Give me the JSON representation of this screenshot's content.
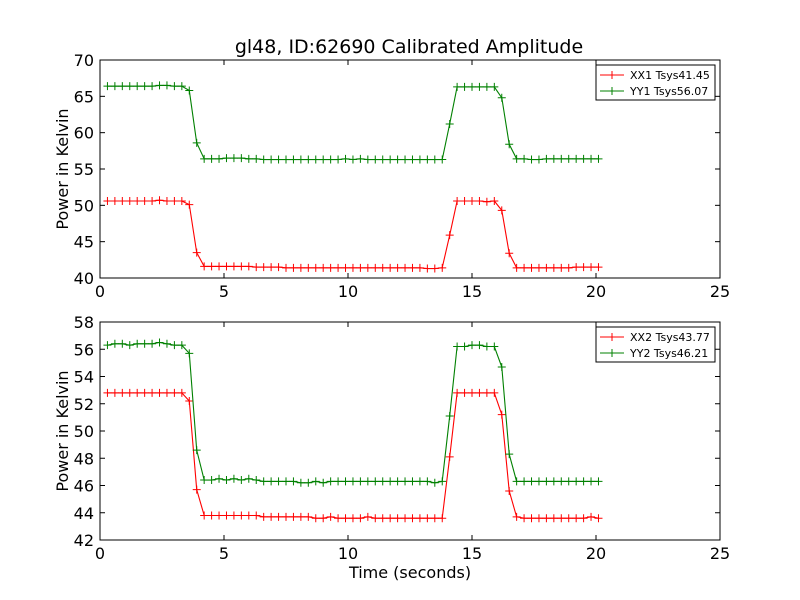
{
  "figure_title": "gl48, ID:62690 Calibrated Amplitude",
  "colors": {
    "series_a": "#ff0000",
    "series_b": "#008000"
  },
  "chart_data": [
    {
      "type": "line",
      "xlabel": "",
      "ylabel": "Power in Kelvin",
      "xlim": [
        0,
        25
      ],
      "ylim": [
        40,
        70
      ],
      "xticks": [
        "0",
        "5",
        "10",
        "15",
        "20",
        "25"
      ],
      "yticks": [
        "40",
        "45",
        "50",
        "55",
        "60",
        "65",
        "70"
      ],
      "grid": false,
      "legend": "top-right",
      "x": [
        0.3,
        0.6,
        0.9,
        1.2,
        1.5,
        1.8,
        2.1,
        2.4,
        2.7,
        3.0,
        3.3,
        3.6,
        3.9,
        4.2,
        4.5,
        4.8,
        5.1,
        5.4,
        5.7,
        6.0,
        6.3,
        6.6,
        6.9,
        7.2,
        7.5,
        7.8,
        8.1,
        8.4,
        8.7,
        9.0,
        9.3,
        9.6,
        9.9,
        10.2,
        10.5,
        10.8,
        11.1,
        11.4,
        11.7,
        12.0,
        12.3,
        12.6,
        12.9,
        13.2,
        13.5,
        13.8,
        14.1,
        14.4,
        14.7,
        15.0,
        15.3,
        15.6,
        15.9,
        16.2,
        16.5,
        16.8,
        17.1,
        17.4,
        17.7,
        18.0,
        18.3,
        18.6,
        18.9,
        19.2,
        19.5,
        19.8,
        20.1
      ],
      "series": [
        {
          "name": "XX1 Tsys41.45",
          "values": [
            50.6,
            50.6,
            50.6,
            50.6,
            50.6,
            50.6,
            50.6,
            50.7,
            50.6,
            50.6,
            50.6,
            50.1,
            43.5,
            41.6,
            41.6,
            41.6,
            41.6,
            41.6,
            41.6,
            41.6,
            41.5,
            41.5,
            41.5,
            41.5,
            41.4,
            41.4,
            41.4,
            41.4,
            41.4,
            41.4,
            41.4,
            41.4,
            41.4,
            41.4,
            41.4,
            41.4,
            41.4,
            41.4,
            41.4,
            41.4,
            41.4,
            41.4,
            41.4,
            41.3,
            41.3,
            41.4,
            45.9,
            50.6,
            50.6,
            50.6,
            50.6,
            50.5,
            50.6,
            49.3,
            43.4,
            41.4,
            41.4,
            41.4,
            41.4,
            41.4,
            41.4,
            41.4,
            41.4,
            41.5,
            41.5,
            41.5,
            41.5
          ]
        },
        {
          "name": "YY1 Tsys56.07",
          "values": [
            66.4,
            66.4,
            66.4,
            66.4,
            66.4,
            66.4,
            66.4,
            66.5,
            66.5,
            66.4,
            66.4,
            65.8,
            58.6,
            56.4,
            56.4,
            56.4,
            56.5,
            56.5,
            56.5,
            56.4,
            56.4,
            56.3,
            56.3,
            56.3,
            56.3,
            56.3,
            56.3,
            56.3,
            56.3,
            56.3,
            56.3,
            56.3,
            56.4,
            56.3,
            56.4,
            56.3,
            56.3,
            56.3,
            56.3,
            56.3,
            56.3,
            56.3,
            56.3,
            56.3,
            56.3,
            56.3,
            61.2,
            66.3,
            66.3,
            66.3,
            66.3,
            66.3,
            66.3,
            64.8,
            58.4,
            56.4,
            56.4,
            56.3,
            56.3,
            56.4,
            56.4,
            56.4,
            56.4,
            56.4,
            56.4,
            56.4,
            56.4
          ]
        }
      ]
    },
    {
      "type": "line",
      "xlabel": "Time (seconds)",
      "ylabel": "Power in Kelvin",
      "xlim": [
        0,
        25
      ],
      "ylim": [
        42,
        58
      ],
      "xticks": [
        "0",
        "5",
        "10",
        "15",
        "20",
        "25"
      ],
      "yticks": [
        "42",
        "44",
        "46",
        "48",
        "50",
        "52",
        "54",
        "56",
        "58"
      ],
      "grid": false,
      "legend": "top-right",
      "x": [
        0.3,
        0.6,
        0.9,
        1.2,
        1.5,
        1.8,
        2.1,
        2.4,
        2.7,
        3.0,
        3.3,
        3.6,
        3.9,
        4.2,
        4.5,
        4.8,
        5.1,
        5.4,
        5.7,
        6.0,
        6.3,
        6.6,
        6.9,
        7.2,
        7.5,
        7.8,
        8.1,
        8.4,
        8.7,
        9.0,
        9.3,
        9.6,
        9.9,
        10.2,
        10.5,
        10.8,
        11.1,
        11.4,
        11.7,
        12.0,
        12.3,
        12.6,
        12.9,
        13.2,
        13.5,
        13.8,
        14.1,
        14.4,
        14.7,
        15.0,
        15.3,
        15.6,
        15.9,
        16.2,
        16.5,
        16.8,
        17.1,
        17.4,
        17.7,
        18.0,
        18.3,
        18.6,
        18.9,
        19.2,
        19.5,
        19.8,
        20.1
      ],
      "series": [
        {
          "name": "XX2 Tsys43.77",
          "values": [
            52.8,
            52.8,
            52.8,
            52.8,
            52.8,
            52.8,
            52.8,
            52.8,
            52.8,
            52.8,
            52.8,
            52.2,
            45.7,
            43.8,
            43.8,
            43.8,
            43.8,
            43.8,
            43.8,
            43.8,
            43.8,
            43.7,
            43.7,
            43.7,
            43.7,
            43.7,
            43.7,
            43.7,
            43.6,
            43.6,
            43.7,
            43.6,
            43.6,
            43.6,
            43.6,
            43.7,
            43.6,
            43.6,
            43.6,
            43.6,
            43.6,
            43.6,
            43.6,
            43.6,
            43.6,
            43.6,
            48.1,
            52.8,
            52.8,
            52.8,
            52.8,
            52.8,
            52.8,
            51.2,
            45.6,
            43.7,
            43.6,
            43.6,
            43.6,
            43.6,
            43.6,
            43.6,
            43.6,
            43.6,
            43.6,
            43.7,
            43.6
          ]
        },
        {
          "name": "YY2 Tsys46.21",
          "values": [
            56.3,
            56.4,
            56.4,
            56.3,
            56.4,
            56.4,
            56.4,
            56.5,
            56.4,
            56.3,
            56.3,
            55.7,
            48.6,
            46.4,
            46.4,
            46.5,
            46.4,
            46.5,
            46.4,
            46.5,
            46.4,
            46.3,
            46.3,
            46.3,
            46.3,
            46.3,
            46.2,
            46.2,
            46.3,
            46.2,
            46.3,
            46.3,
            46.3,
            46.3,
            46.3,
            46.3,
            46.3,
            46.3,
            46.3,
            46.3,
            46.3,
            46.3,
            46.3,
            46.3,
            46.2,
            46.3,
            51.1,
            56.2,
            56.2,
            56.3,
            56.3,
            56.2,
            56.2,
            54.7,
            48.3,
            46.3,
            46.3,
            46.3,
            46.3,
            46.3,
            46.3,
            46.3,
            46.3,
            46.3,
            46.3,
            46.3,
            46.3
          ]
        }
      ]
    }
  ]
}
